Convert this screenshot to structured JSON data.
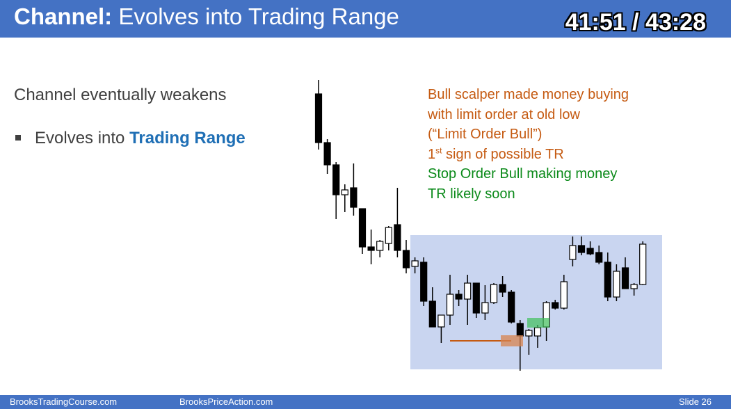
{
  "slide": {
    "title_bold": "Channel:",
    "title_rest": " Evolves into Trading Range",
    "timer": "41:51 / 43:28",
    "heading": "Channel eventually weakens",
    "bullet_prefix": "Evolves into ",
    "bullet_accent": "Trading Range",
    "notes": {
      "line1": "Bull scalper made money buying",
      "line2": "with limit order at old low",
      "line3": "(“Limit Order Bull”)",
      "line4_num": "1",
      "line4_sup": "st",
      "line4_rest": " sign of possible TR",
      "line5": "Stop Order Bull making money",
      "line6": "TR likely soon"
    },
    "footer": {
      "left": "BrooksTradingCourse.com",
      "center": "BrooksPriceAction.com",
      "slide_label": "Slide  26"
    }
  },
  "colors": {
    "header": "#4472c4",
    "accent": "#1f6fb5",
    "orange": "#c55a11",
    "green": "#0b8a1a",
    "range_box": "#c9d5f0",
    "bear_bar": "#000000",
    "bull_bar": "#ffffff"
  },
  "chart_data": {
    "type": "candlestick",
    "bars": [
      {
        "o": 20,
        "h": 0,
        "l": 100,
        "c": 90
      },
      {
        "o": 90,
        "h": 85,
        "l": 135,
        "c": 122
      },
      {
        "o": 122,
        "h": 118,
        "l": 200,
        "c": 165
      },
      {
        "o": 165,
        "h": 150,
        "l": 190,
        "c": 158
      },
      {
        "o": 155,
        "h": 120,
        "l": 195,
        "c": 183
      },
      {
        "o": 185,
        "h": 185,
        "l": 250,
        "c": 240
      },
      {
        "o": 240,
        "h": 215,
        "l": 265,
        "c": 245
      },
      {
        "o": 245,
        "h": 230,
        "l": 255,
        "c": 232
      },
      {
        "o": 235,
        "h": 210,
        "l": 245,
        "c": 212
      },
      {
        "o": 208,
        "h": 155,
        "l": 255,
        "c": 245
      },
      {
        "o": 245,
        "h": 230,
        "l": 278,
        "c": 270
      },
      {
        "o": 268,
        "h": 255,
        "l": 278,
        "c": 260
      },
      {
        "o": 262,
        "h": 255,
        "l": 325,
        "c": 318
      },
      {
        "o": 318,
        "h": 298,
        "l": 350,
        "c": 355
      },
      {
        "o": 355,
        "h": 340,
        "l": 378,
        "c": 338
      },
      {
        "o": 338,
        "h": 280,
        "l": 352,
        "c": 308
      },
      {
        "o": 308,
        "h": 302,
        "l": 325,
        "c": 315
      },
      {
        "o": 315,
        "h": 280,
        "l": 352,
        "c": 292
      },
      {
        "o": 292,
        "h": 292,
        "l": 342,
        "c": 335
      },
      {
        "o": 335,
        "h": 295,
        "l": 345,
        "c": 320
      },
      {
        "o": 320,
        "h": 292,
        "l": 322,
        "c": 294
      },
      {
        "o": 294,
        "h": 282,
        "l": 312,
        "c": 305
      },
      {
        "o": 305,
        "h": 302,
        "l": 350,
        "c": 348
      },
      {
        "o": 350,
        "h": 345,
        "l": 418,
        "c": 368
      },
      {
        "o": 368,
        "h": 358,
        "l": 395,
        "c": 360
      },
      {
        "o": 368,
        "h": 352,
        "l": 385,
        "c": 356
      },
      {
        "o": 355,
        "h": 318,
        "l": 375,
        "c": 320
      },
      {
        "o": 320,
        "h": 316,
        "l": 330,
        "c": 328
      },
      {
        "o": 328,
        "h": 280,
        "l": 330,
        "c": 290
      },
      {
        "o": 258,
        "h": 225,
        "l": 268,
        "c": 238
      },
      {
        "o": 238,
        "h": 225,
        "l": 252,
        "c": 248
      },
      {
        "o": 242,
        "h": 232,
        "l": 252,
        "c": 250
      },
      {
        "o": 248,
        "h": 238,
        "l": 265,
        "c": 262
      },
      {
        "o": 262,
        "h": 248,
        "l": 318,
        "c": 312
      },
      {
        "o": 312,
        "h": 265,
        "l": 318,
        "c": 275
      },
      {
        "o": 270,
        "h": 255,
        "l": 300,
        "c": 300
      },
      {
        "o": 300,
        "h": 292,
        "l": 310,
        "c": 294
      },
      {
        "o": 294,
        "h": 232,
        "l": 295,
        "c": 236
      }
    ],
    "annotations": [
      "limit-order-bull-line",
      "orange-marker",
      "green-marker",
      "trading-range-box"
    ]
  }
}
